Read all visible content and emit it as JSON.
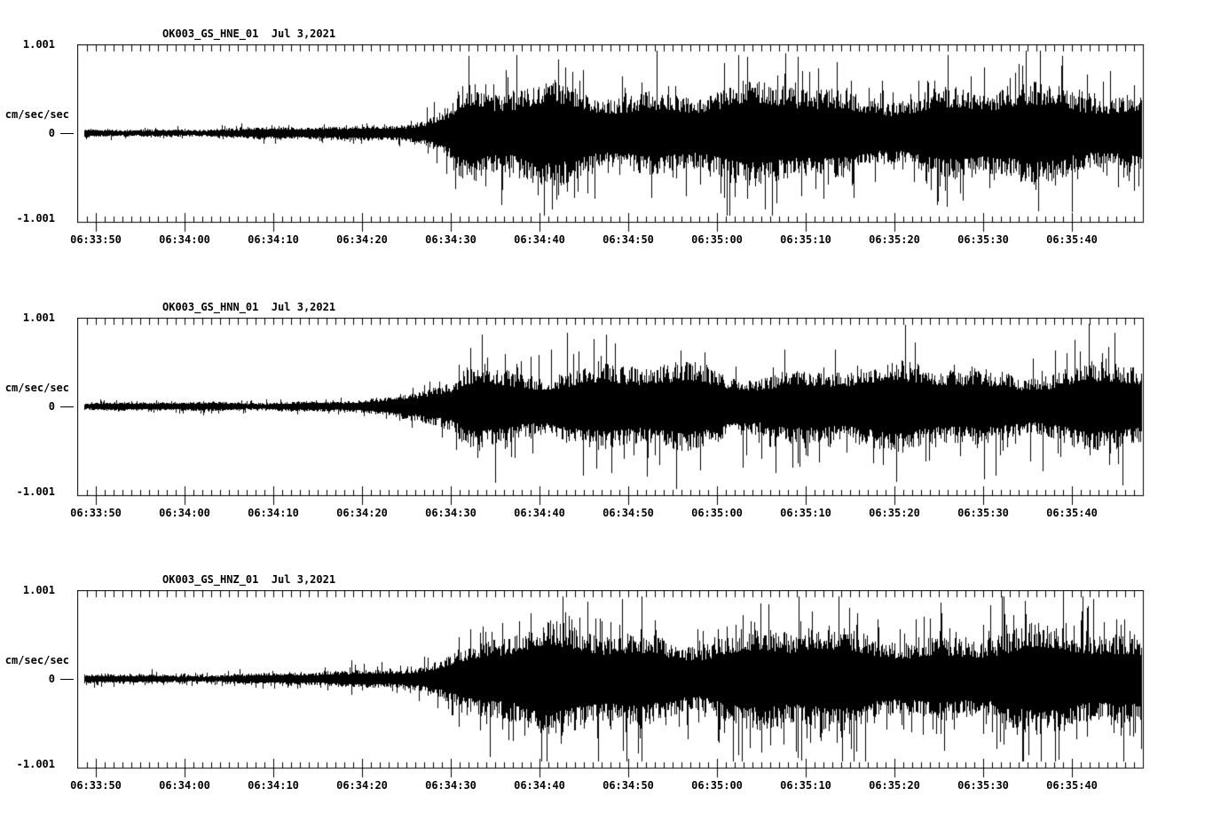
{
  "colors": {
    "background": "#ffffff",
    "ink": "#000000"
  },
  "x_axis": {
    "tick_labels": [
      "06:33:50",
      "06:34:00",
      "06:34:10",
      "06:34:20",
      "06:34:30",
      "06:34:40",
      "06:34:50",
      "06:35:00",
      "06:35:10",
      "06:35:20",
      "06:35:30",
      "06:35:40"
    ],
    "minor_tick_interval_s": 1,
    "major_tick_interval_s": 10,
    "start": "06:33:48",
    "end": "06:35:48"
  },
  "panels": [
    {
      "title": "OK003_GS_HNE_01  Jul 3,2021",
      "y_unit": "cm/sec/sec",
      "y_top": "1.001",
      "y_zero": "0",
      "y_bottom": "-1.001"
    },
    {
      "title": "OK003_GS_HNN_01  Jul 3,2021",
      "y_unit": "cm/sec/sec",
      "y_top": "1.001",
      "y_zero": "0",
      "y_bottom": "-1.001"
    },
    {
      "title": "OK003_GS_HNZ_01  Jul 3,2021",
      "y_unit": "cm/sec/sec",
      "y_top": "1.001",
      "y_zero": "0",
      "y_bottom": "-1.001"
    }
  ],
  "chart_data": [
    {
      "type": "line",
      "subtype": "seismogram",
      "title": "OK003_GS_HNE_01",
      "date": "Jul 3,2021",
      "station": "OK003",
      "network": "GS",
      "channel": "HNE",
      "location": "01",
      "ylabel": "cm/sec/sec",
      "ylim": [
        -1.001,
        1.001
      ],
      "x_range": [
        "06:33:48",
        "06:35:48"
      ],
      "x_ticks": [
        "06:33:50",
        "06:34:00",
        "06:34:10",
        "06:34:20",
        "06:34:30",
        "06:34:40",
        "06:34:50",
        "06:35:00",
        "06:35:10",
        "06:35:20",
        "06:35:30",
        "06:35:40"
      ],
      "quiet_until": "06:34:18",
      "strong_onset": "06:34:30",
      "envelope_t_s": [
        -2,
        10,
        20,
        28,
        33,
        36,
        38,
        40,
        41,
        42.5,
        44,
        47,
        50,
        54,
        58,
        63,
        70,
        78,
        86,
        94,
        102,
        110,
        118
      ],
      "envelope_amp": [
        0.038,
        0.04,
        0.048,
        0.06,
        0.085,
        0.12,
        0.17,
        0.26,
        0.4,
        0.44,
        0.38,
        0.36,
        0.4,
        0.43,
        0.39,
        0.42,
        0.39,
        0.42,
        0.38,
        0.41,
        0.38,
        0.41,
        0.39
      ],
      "peak_amp": 0.8,
      "render": {
        "seed": 101,
        "spike_prob": 0.1,
        "spike_base": 1.45,
        "spike_var": 0.75,
        "down_bias": 1.0
      }
    },
    {
      "type": "line",
      "subtype": "seismogram",
      "title": "OK003_GS_HNN_01",
      "date": "Jul 3,2021",
      "station": "OK003",
      "network": "GS",
      "channel": "HNN",
      "location": "01",
      "ylabel": "cm/sec/sec",
      "ylim": [
        -1.001,
        1.001
      ],
      "x_range": [
        "06:33:48",
        "06:35:48"
      ],
      "x_ticks": [
        "06:33:50",
        "06:34:00",
        "06:34:10",
        "06:34:20",
        "06:34:30",
        "06:34:40",
        "06:34:50",
        "06:35:00",
        "06:35:10",
        "06:35:20",
        "06:35:30",
        "06:35:40"
      ],
      "quiet_until": "06:34:18",
      "strong_onset": "06:34:30",
      "envelope_t_s": [
        -2,
        10,
        20,
        28,
        33,
        36,
        38,
        40,
        41.5,
        43,
        45,
        48,
        52,
        56,
        60,
        66,
        72,
        80,
        88,
        96,
        104,
        112,
        118
      ],
      "envelope_amp": [
        0.036,
        0.038,
        0.046,
        0.058,
        0.08,
        0.11,
        0.16,
        0.24,
        0.38,
        0.42,
        0.37,
        0.35,
        0.39,
        0.36,
        0.34,
        0.37,
        0.34,
        0.37,
        0.34,
        0.37,
        0.35,
        0.37,
        0.35
      ],
      "peak_amp": 0.89,
      "render": {
        "seed": 202,
        "spike_prob": 0.09,
        "spike_base": 1.45,
        "spike_var": 0.85,
        "down_bias": 1.15
      }
    },
    {
      "type": "line",
      "subtype": "seismogram",
      "title": "OK003_GS_HNZ_01",
      "date": "Jul 3,2021",
      "station": "OK003",
      "network": "GS",
      "channel": "HNZ",
      "location": "01",
      "ylabel": "cm/sec/sec",
      "ylim": [
        -1.001,
        1.001
      ],
      "x_range": [
        "06:33:48",
        "06:35:48"
      ],
      "x_ticks": [
        "06:33:50",
        "06:34:00",
        "06:34:10",
        "06:34:20",
        "06:34:30",
        "06:34:40",
        "06:34:50",
        "06:35:00",
        "06:35:10",
        "06:35:20",
        "06:35:30",
        "06:35:40"
      ],
      "quiet_until": "06:34:15",
      "strong_onset": "06:34:30",
      "envelope_t_s": [
        -2,
        10,
        20,
        26,
        30,
        34,
        37,
        39,
        41,
        43,
        45,
        48,
        52,
        57,
        62,
        68,
        75,
        82,
        90,
        98,
        106,
        114,
        118
      ],
      "envelope_amp": [
        0.038,
        0.04,
        0.05,
        0.058,
        0.072,
        0.1,
        0.14,
        0.2,
        0.3,
        0.4,
        0.44,
        0.41,
        0.44,
        0.41,
        0.43,
        0.41,
        0.44,
        0.41,
        0.43,
        0.41,
        0.43,
        0.41,
        0.42
      ],
      "peak_amp": 0.91,
      "render": {
        "seed": 303,
        "spike_prob": 0.13,
        "spike_base": 1.5,
        "spike_var": 0.85,
        "down_bias": 1.2
      }
    }
  ]
}
